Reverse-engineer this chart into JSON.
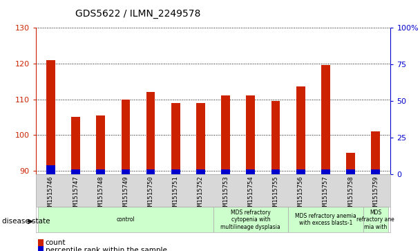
{
  "title": "GDS5622 / ILMN_2249578",
  "samples": [
    "GSM1515746",
    "GSM1515747",
    "GSM1515748",
    "GSM1515749",
    "GSM1515750",
    "GSM1515751",
    "GSM1515752",
    "GSM1515753",
    "GSM1515754",
    "GSM1515755",
    "GSM1515756",
    "GSM1515757",
    "GSM1515758",
    "GSM1515759"
  ],
  "count_values": [
    121.0,
    105.0,
    105.5,
    110.0,
    112.0,
    109.0,
    109.0,
    111.0,
    111.0,
    109.5,
    113.5,
    119.5,
    95.0,
    101.0
  ],
  "percentile_values": [
    2.5,
    1.5,
    1.5,
    1.5,
    1.5,
    1.5,
    1.5,
    1.5,
    1.5,
    1.5,
    1.5,
    1.5,
    1.5,
    1.5
  ],
  "ymin": 89,
  "ymax": 130,
  "y2min": 0,
  "y2max": 100,
  "yticks": [
    90,
    100,
    110,
    120,
    130
  ],
  "y2ticks": [
    0,
    25,
    50,
    75,
    100
  ],
  "bar_color": "#cc2200",
  "percentile_color": "#0000cc",
  "bar_width": 0.35,
  "disease_state_label": "disease state",
  "legend_count_label": "count",
  "legend_percentile_label": "percentile rank within the sample",
  "background_color": "#ffffff",
  "tick_color_left": "#cc2200",
  "tick_color_right": "#0000cc",
  "group_boundaries": [
    {
      "start": 0,
      "end": 7,
      "label": "control"
    },
    {
      "start": 7,
      "end": 10,
      "label": "MDS refractory\ncytopenia with\nmultilineage dysplasia"
    },
    {
      "start": 10,
      "end": 13,
      "label": "MDS refractory anemia\nwith excess blasts-1"
    },
    {
      "start": 13,
      "end": 14,
      "label": "MDS\nrefractory ane\nmia with"
    }
  ],
  "group_color": "#ccffcc"
}
